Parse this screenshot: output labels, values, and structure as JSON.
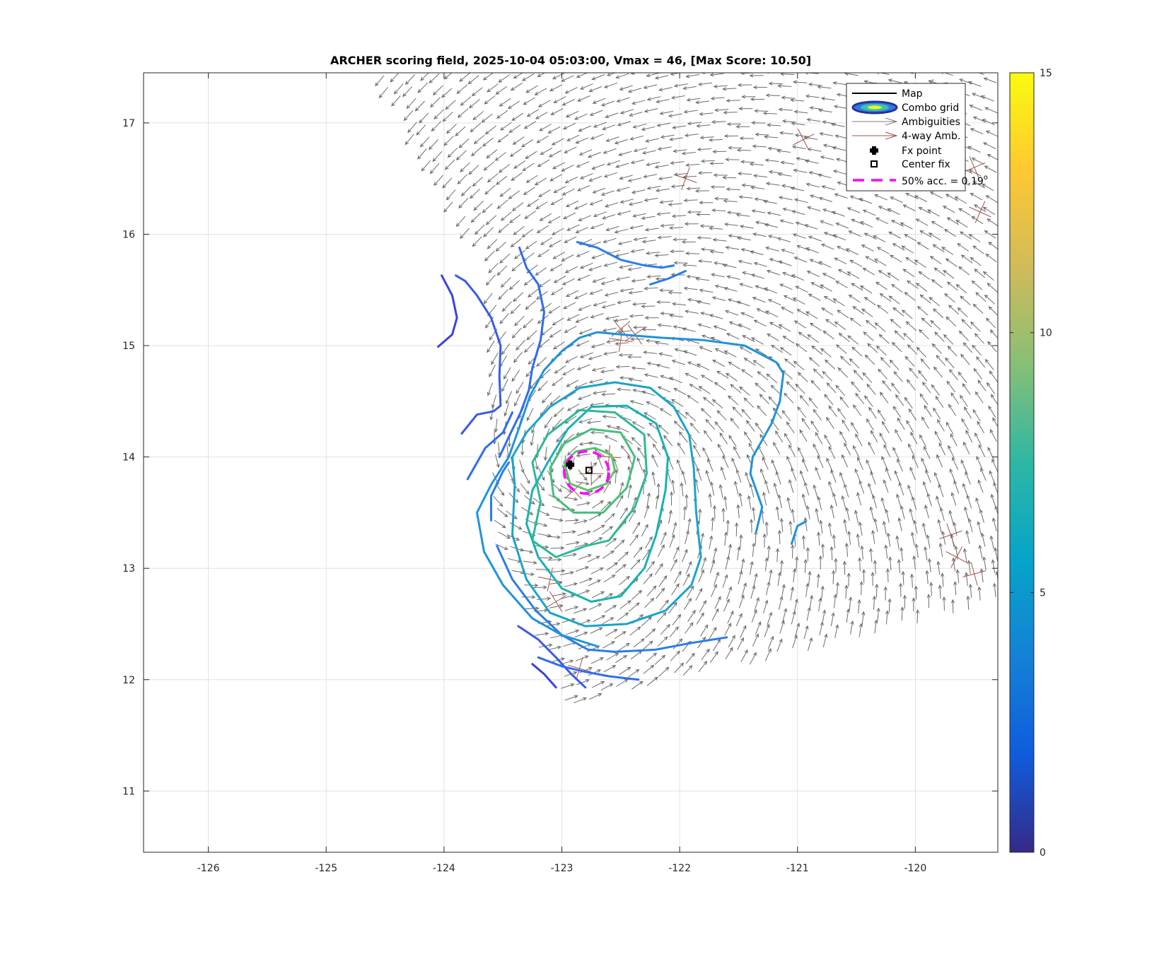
{
  "chart_data": {
    "type": "contour",
    "title": "ARCHER scoring field, 2025-10-04 05:03:00, Vmax = 46, [Max Score: 10.50]",
    "xlabel": "",
    "ylabel": "",
    "xlim": [
      -126.55,
      -119.3
    ],
    "ylim": [
      10.45,
      17.45
    ],
    "xticks": [
      -126,
      -125,
      -124,
      -123,
      -122,
      -121,
      -120
    ],
    "yticks": [
      11,
      12,
      13,
      14,
      15,
      16,
      17
    ],
    "grid": true,
    "colorbar": {
      "range": [
        0,
        15
      ],
      "ticks": [
        0,
        5,
        10,
        15
      ],
      "colormap": "parula"
    },
    "legend": {
      "placement": "top-right",
      "entries": [
        {
          "label": "Map",
          "style": "line",
          "color": "#000000"
        },
        {
          "label": "Combo grid",
          "style": "contour-ellipse"
        },
        {
          "label": "Ambiguities",
          "style": "arrow",
          "color": "#808080"
        },
        {
          "label": "4-way Amb.",
          "style": "arrow",
          "color": "#a0504b"
        },
        {
          "label": "Fx point",
          "style": "filled-marker",
          "color": "#000000"
        },
        {
          "label": "Center fix",
          "style": "open-square",
          "color": "#000000"
        },
        {
          "label": "50% acc. = 0.19",
          "superscript": "o",
          "style": "dashed-line",
          "color": "#ff00ff"
        }
      ]
    },
    "fx_point": {
      "lon": -122.93,
      "lat": 13.93
    },
    "center_fix": {
      "lon": -122.77,
      "lat": 13.88
    },
    "accuracy_circle": {
      "lon": -122.79,
      "lat": 13.86,
      "radius_deg": 0.19,
      "color": "#ff00ff"
    },
    "vortex_center": {
      "lon": -122.8,
      "lat": 13.9
    },
    "contours": [
      {
        "level": 1.5,
        "color": "#3c43d8",
        "points": [
          [
            -124.02,
            15.63
          ],
          [
            -123.93,
            15.45
          ],
          [
            -123.89,
            15.25
          ],
          [
            -123.93,
            15.1
          ],
          [
            -124.05,
            14.99
          ]
        ]
      },
      {
        "level": 1.5,
        "color": "#3c43d8",
        "points": [
          [
            -123.25,
            12.14
          ],
          [
            -123.15,
            12.05
          ],
          [
            -123.05,
            11.93
          ]
        ]
      },
      {
        "level": 2.5,
        "color": "#3a5ae8",
        "points": [
          [
            -123.85,
            14.21
          ],
          [
            -123.72,
            14.38
          ],
          [
            -123.58,
            14.41
          ],
          [
            -123.52,
            14.46
          ],
          [
            -123.53,
            14.72
          ],
          [
            -123.52,
            15.0
          ],
          [
            -123.6,
            15.25
          ],
          [
            -123.72,
            15.45
          ],
          [
            -123.82,
            15.58
          ],
          [
            -123.9,
            15.63
          ]
        ]
      },
      {
        "level": 2.5,
        "color": "#3a5ae8",
        "points": [
          [
            -123.37,
            12.48
          ],
          [
            -123.2,
            12.36
          ],
          [
            -123.05,
            12.2
          ],
          [
            -122.92,
            12.05
          ],
          [
            -122.8,
            11.93
          ]
        ]
      },
      {
        "level": 3.5,
        "color": "#2f6cef",
        "points": [
          [
            -123.36,
            15.88
          ],
          [
            -123.3,
            15.7
          ],
          [
            -123.2,
            15.55
          ],
          [
            -123.15,
            15.3
          ],
          [
            -123.18,
            15.05
          ],
          [
            -123.25,
            14.8
          ],
          [
            -123.28,
            14.6
          ],
          [
            -123.35,
            14.4
          ],
          [
            -123.45,
            14.18
          ],
          [
            -123.53,
            14.0
          ]
        ]
      },
      {
        "level": 3.5,
        "color": "#2f6cef",
        "points": [
          [
            -123.8,
            13.8
          ],
          [
            -123.65,
            14.08
          ],
          [
            -123.5,
            14.22
          ],
          [
            -123.42,
            14.4
          ]
        ]
      },
      {
        "level": 3.5,
        "color": "#2f6cef",
        "points": [
          [
            -123.2,
            12.2
          ],
          [
            -123.0,
            12.12
          ],
          [
            -122.8,
            12.07
          ],
          [
            -122.6,
            12.03
          ],
          [
            -122.35,
            12.0
          ]
        ]
      },
      {
        "level": 4.5,
        "color": "#2a7de6",
        "points": [
          [
            -123.6,
            13.43
          ],
          [
            -123.6,
            13.65
          ],
          [
            -123.5,
            13.87
          ],
          [
            -123.45,
            13.95
          ]
        ]
      },
      {
        "level": 4.5,
        "color": "#2a7de6",
        "points": [
          [
            -123.55,
            13.2
          ],
          [
            -123.42,
            12.9
          ],
          [
            -123.22,
            12.62
          ],
          [
            -123.0,
            12.4
          ],
          [
            -122.78,
            12.27
          ],
          [
            -122.55,
            12.25
          ],
          [
            -122.2,
            12.27
          ],
          [
            -121.9,
            12.33
          ],
          [
            -121.6,
            12.38
          ]
        ]
      },
      {
        "level": 4.5,
        "color": "#2a7de6",
        "points": [
          [
            -122.25,
            15.55
          ],
          [
            -122.1,
            15.6
          ],
          [
            -121.95,
            15.67
          ]
        ]
      },
      {
        "level": 4.5,
        "color": "#2a7de6",
        "points": [
          [
            -122.87,
            15.93
          ],
          [
            -122.7,
            15.88
          ],
          [
            -122.5,
            15.77
          ],
          [
            -122.3,
            15.72
          ],
          [
            -122.15,
            15.7
          ],
          [
            -122.05,
            15.72
          ]
        ]
      },
      {
        "level": 5.5,
        "color": "#1f92dc",
        "points": [
          [
            -121.35,
            13.33
          ],
          [
            -121.3,
            13.55
          ],
          [
            -121.4,
            13.85
          ],
          [
            -121.38,
            14.0
          ],
          [
            -121.22,
            14.3
          ],
          [
            -121.15,
            14.5
          ],
          [
            -121.12,
            14.75
          ],
          [
            -121.18,
            14.85
          ],
          [
            -121.45,
            15.0
          ],
          [
            -121.8,
            15.05
          ],
          [
            -122.15,
            15.07
          ],
          [
            -122.5,
            15.1
          ],
          [
            -122.7,
            15.12
          ],
          [
            -122.85,
            15.07
          ],
          [
            -123.0,
            14.95
          ],
          [
            -123.15,
            14.78
          ],
          [
            -123.27,
            14.55
          ],
          [
            -123.35,
            14.3
          ],
          [
            -123.45,
            14.0
          ],
          [
            -123.6,
            13.75
          ],
          [
            -123.72,
            13.5
          ],
          [
            -123.66,
            13.15
          ],
          [
            -123.5,
            12.85
          ],
          [
            -123.25,
            12.55
          ],
          [
            -123.0,
            12.4
          ],
          [
            -122.7,
            12.3
          ]
        ]
      },
      {
        "level": 5.5,
        "color": "#1f92dc",
        "points": [
          [
            -121.05,
            13.22
          ],
          [
            -121.0,
            13.38
          ],
          [
            -120.93,
            13.42
          ]
        ]
      },
      {
        "level": 6.5,
        "color": "#19a4cc",
        "points": [
          [
            -123.4,
            13.75
          ],
          [
            -123.42,
            14.0
          ],
          [
            -123.3,
            14.22
          ],
          [
            -123.1,
            14.45
          ],
          [
            -122.85,
            14.62
          ],
          [
            -122.55,
            14.67
          ],
          [
            -122.25,
            14.62
          ],
          [
            -122.05,
            14.45
          ],
          [
            -121.92,
            14.2
          ],
          [
            -121.88,
            13.9
          ],
          [
            -121.86,
            13.5
          ],
          [
            -121.82,
            13.1
          ],
          [
            -121.9,
            12.85
          ],
          [
            -122.12,
            12.62
          ],
          [
            -122.45,
            12.5
          ],
          [
            -122.8,
            12.48
          ],
          [
            -123.1,
            12.6
          ],
          [
            -123.3,
            12.9
          ],
          [
            -123.42,
            13.3
          ],
          [
            -123.4,
            13.75
          ]
        ]
      },
      {
        "level": 7.5,
        "color": "#17b2b4",
        "points": [
          [
            -123.12,
            13.95
          ],
          [
            -122.95,
            14.25
          ],
          [
            -122.75,
            14.45
          ],
          [
            -122.45,
            14.46
          ],
          [
            -122.2,
            14.3
          ],
          [
            -122.1,
            14.0
          ],
          [
            -122.12,
            13.7
          ],
          [
            -122.2,
            13.3
          ],
          [
            -122.3,
            13.0
          ],
          [
            -122.5,
            12.75
          ],
          [
            -122.75,
            12.7
          ],
          [
            -123.0,
            12.82
          ],
          [
            -123.2,
            13.1
          ],
          [
            -123.3,
            13.4
          ],
          [
            -123.25,
            13.7
          ],
          [
            -123.12,
            13.95
          ]
        ]
      },
      {
        "level": 8.5,
        "color": "#2eb898",
        "points": [
          [
            -123.18,
            13.6
          ],
          [
            -123.25,
            13.95
          ],
          [
            -123.12,
            14.2
          ],
          [
            -122.85,
            14.42
          ],
          [
            -122.55,
            14.4
          ],
          [
            -122.3,
            14.2
          ],
          [
            -122.28,
            13.85
          ],
          [
            -122.38,
            13.55
          ],
          [
            -122.6,
            13.25
          ],
          [
            -122.8,
            13.2
          ],
          [
            -123.05,
            13.1
          ],
          [
            -123.25,
            13.25
          ],
          [
            -123.18,
            13.6
          ]
        ]
      },
      {
        "level": 9.5,
        "color": "#46bf7c",
        "points": [
          [
            -123.1,
            13.9
          ],
          [
            -122.98,
            14.12
          ],
          [
            -122.75,
            14.25
          ],
          [
            -122.5,
            14.22
          ],
          [
            -122.38,
            14.0
          ],
          [
            -122.45,
            13.72
          ],
          [
            -122.65,
            13.5
          ],
          [
            -122.9,
            13.5
          ],
          [
            -123.07,
            13.65
          ],
          [
            -123.1,
            13.9
          ]
        ]
      },
      {
        "level": 10.0,
        "color": "#5cc36c",
        "points": [
          [
            -122.98,
            13.95
          ],
          [
            -122.88,
            14.05
          ],
          [
            -122.72,
            14.08
          ],
          [
            -122.58,
            14.02
          ],
          [
            -122.55,
            13.88
          ],
          [
            -122.62,
            13.76
          ],
          [
            -122.78,
            13.7
          ],
          [
            -122.93,
            13.76
          ],
          [
            -122.98,
            13.95
          ]
        ]
      }
    ]
  }
}
